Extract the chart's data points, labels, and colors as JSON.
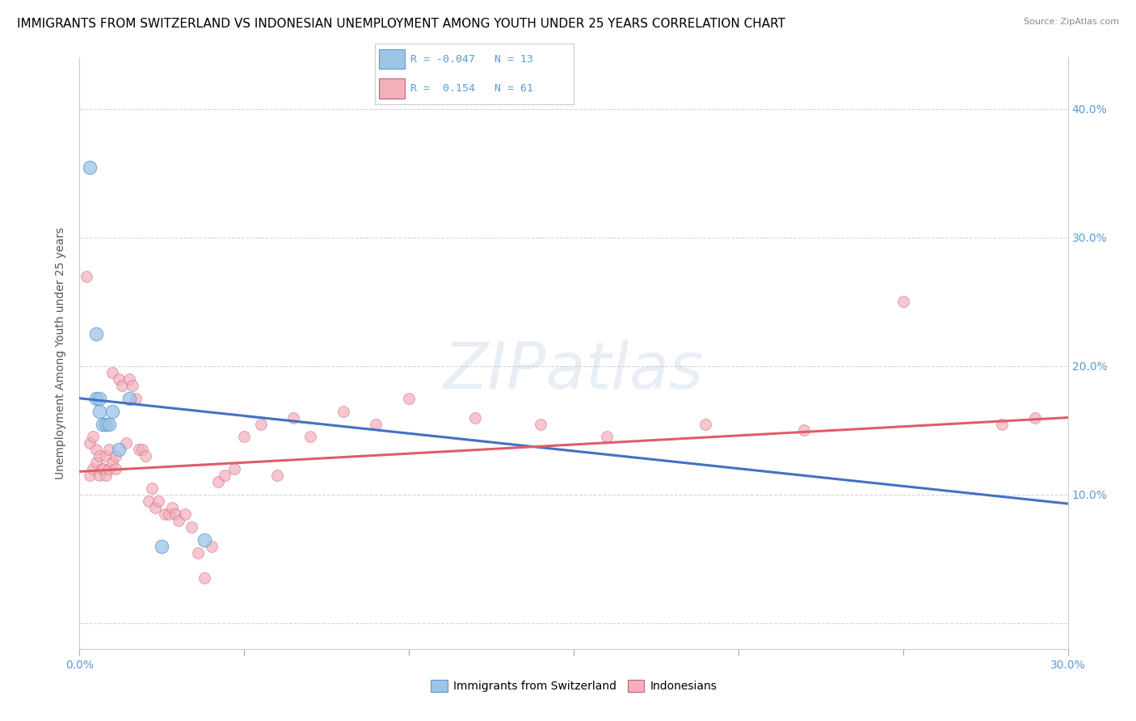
{
  "title": "IMMIGRANTS FROM SWITZERLAND VS INDONESIAN UNEMPLOYMENT AMONG YOUTH UNDER 25 YEARS CORRELATION CHART",
  "source": "Source: ZipAtlas.com",
  "ylabel": "Unemployment Among Youth under 25 years",
  "legend_blue_label": "Immigrants from Switzerland",
  "legend_pink_label": "Indonesians",
  "legend_R_blue": "R = -0.047",
  "legend_N_blue": "N = 13",
  "legend_R_pink": "R =  0.154",
  "legend_N_pink": "N = 61",
  "blue_scatter_x": [
    0.003,
    0.005,
    0.005,
    0.006,
    0.006,
    0.007,
    0.008,
    0.009,
    0.01,
    0.012,
    0.015,
    0.025,
    0.038
  ],
  "blue_scatter_y": [
    0.355,
    0.225,
    0.175,
    0.175,
    0.165,
    0.155,
    0.155,
    0.155,
    0.165,
    0.135,
    0.175,
    0.06,
    0.065
  ],
  "pink_scatter_x": [
    0.002,
    0.003,
    0.003,
    0.004,
    0.004,
    0.005,
    0.005,
    0.006,
    0.006,
    0.007,
    0.007,
    0.008,
    0.008,
    0.009,
    0.009,
    0.01,
    0.01,
    0.011,
    0.011,
    0.012,
    0.013,
    0.014,
    0.015,
    0.016,
    0.017,
    0.018,
    0.019,
    0.02,
    0.021,
    0.022,
    0.023,
    0.024,
    0.026,
    0.027,
    0.028,
    0.029,
    0.03,
    0.032,
    0.034,
    0.036,
    0.038,
    0.04,
    0.042,
    0.044,
    0.047,
    0.05,
    0.055,
    0.06,
    0.065,
    0.07,
    0.08,
    0.09,
    0.1,
    0.12,
    0.14,
    0.16,
    0.19,
    0.22,
    0.25,
    0.28,
    0.29
  ],
  "pink_scatter_y": [
    0.27,
    0.14,
    0.115,
    0.12,
    0.145,
    0.125,
    0.135,
    0.13,
    0.115,
    0.12,
    0.12,
    0.115,
    0.13,
    0.12,
    0.135,
    0.125,
    0.195,
    0.12,
    0.13,
    0.19,
    0.185,
    0.14,
    0.19,
    0.185,
    0.175,
    0.135,
    0.135,
    0.13,
    0.095,
    0.105,
    0.09,
    0.095,
    0.085,
    0.085,
    0.09,
    0.085,
    0.08,
    0.085,
    0.075,
    0.055,
    0.035,
    0.06,
    0.11,
    0.115,
    0.12,
    0.145,
    0.155,
    0.115,
    0.16,
    0.145,
    0.165,
    0.155,
    0.175,
    0.16,
    0.155,
    0.145,
    0.155,
    0.15,
    0.25,
    0.155,
    0.16
  ],
  "blue_line_x": [
    0.0,
    0.3
  ],
  "blue_line_y": [
    0.175,
    0.093
  ],
  "blue_line_color": "#4472C4",
  "pink_line_x": [
    0.0,
    0.3
  ],
  "pink_line_y": [
    0.118,
    0.16
  ],
  "pink_line_color": "#E05C6A",
  "blue_scatter_color": "#9DC3E6",
  "pink_scatter_color": "#F4AFBA",
  "background_color": "#FFFFFF",
  "grid_color": "#CCCCCC",
  "xlim": [
    0.0,
    0.3
  ],
  "ylim": [
    -0.02,
    0.44
  ],
  "xtick_vals": [
    0.0,
    0.05,
    0.1,
    0.15,
    0.2,
    0.25,
    0.3
  ],
  "ytick_vals": [
    0.0,
    0.1,
    0.2,
    0.3,
    0.4
  ],
  "title_fontsize": 11,
  "axis_fontsize": 10,
  "legend_fontsize": 11,
  "watermark_text": "ZIPatlas"
}
